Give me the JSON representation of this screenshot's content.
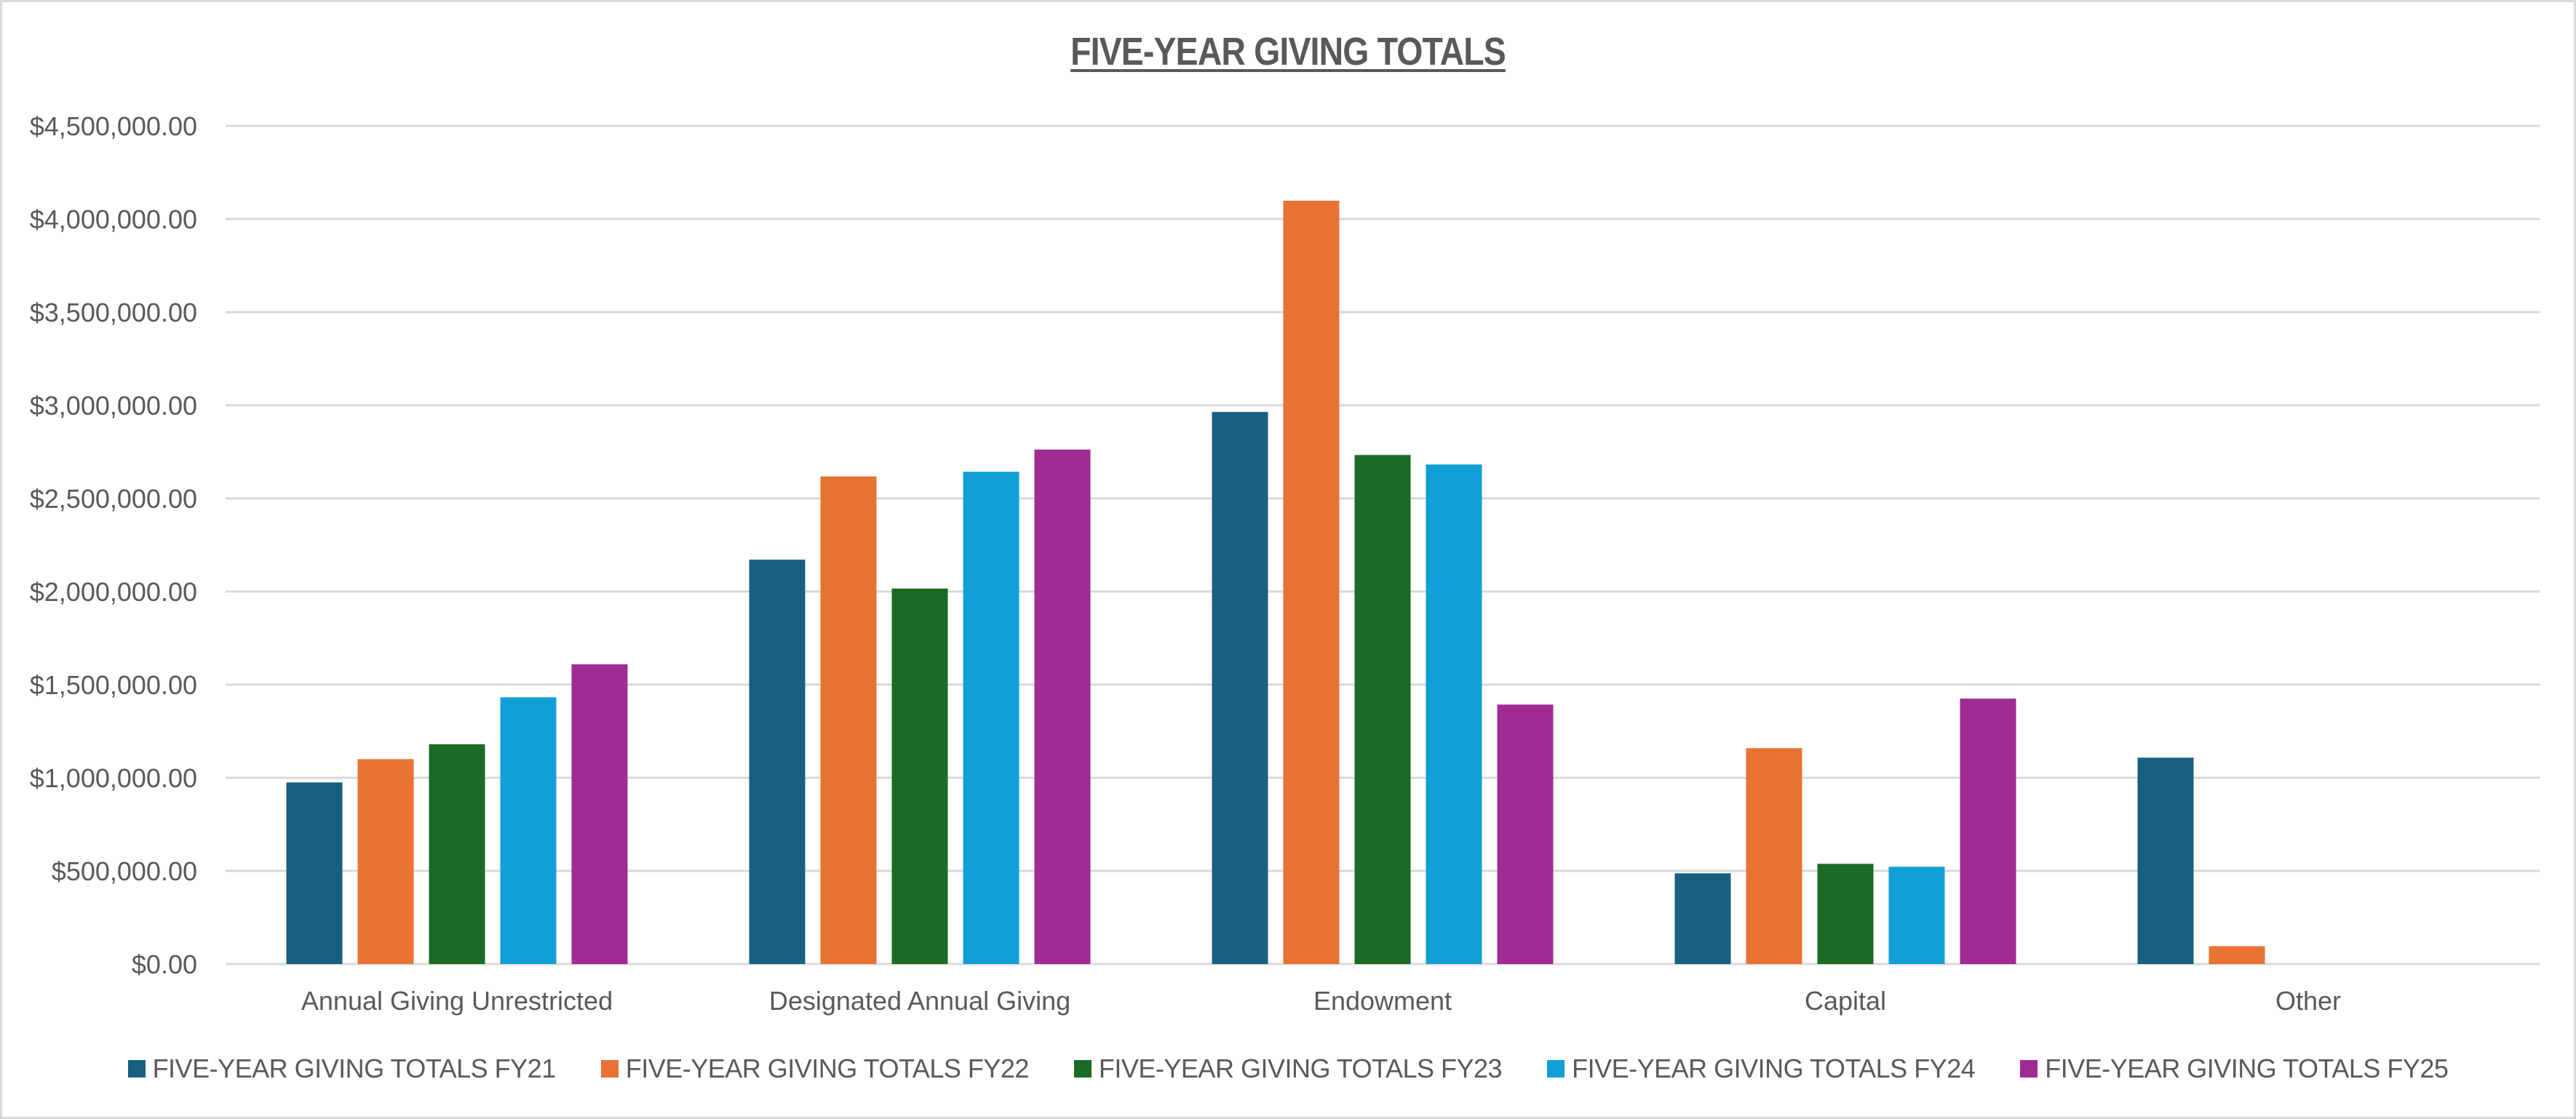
{
  "chart_data": {
    "type": "bar",
    "title": "FIVE-YEAR GIVING TOTALS",
    "xlabel": "",
    "ylabel": "",
    "ylim": [
      0,
      4500000
    ],
    "yticks": [
      0,
      500000,
      1000000,
      1500000,
      2000000,
      2500000,
      3000000,
      3500000,
      4000000,
      4500000
    ],
    "ytick_labels": [
      "$0.00",
      "$500,000.00",
      "$1,000,000.00",
      "$1,500,000.00",
      "$2,000,000.00",
      "$2,500,000.00",
      "$3,000,000.00",
      "$3,500,000.00",
      "$4,000,000.00",
      "$4,500,000.00"
    ],
    "grid": true,
    "legend_position": "bottom",
    "categories": [
      "Annual Giving Unrestricted",
      "Designated Annual Giving",
      "Endowment",
      "Capital",
      "Other"
    ],
    "series": [
      {
        "name": "FIVE-YEAR GIVING TOTALS FY21",
        "color": "#17607f",
        "values": [
          975000,
          2171000,
          2964000,
          487000,
          1108000
        ]
      },
      {
        "name": "FIVE-YEAR GIVING TOTALS FY22",
        "color": "#e97233",
        "values": [
          1100000,
          2618000,
          4098000,
          1159000,
          96000
        ]
      },
      {
        "name": "FIVE-YEAR GIVING TOTALS FY23",
        "color": "#1b6a25",
        "values": [
          1180000,
          2016000,
          2733000,
          538000,
          0
        ]
      },
      {
        "name": "FIVE-YEAR GIVING TOTALS FY24",
        "color": "#119fd6",
        "values": [
          1432000,
          2643000,
          2682000,
          522000,
          0
        ]
      },
      {
        "name": "FIVE-YEAR GIVING TOTALS FY25",
        "color": "#a02b93",
        "values": [
          1609000,
          2762000,
          1393000,
          1425000,
          0
        ]
      }
    ]
  },
  "colors": {
    "text": "#595959",
    "gridline": "#d9d9d9",
    "border": "#d9d9d9",
    "background": "#ffffff"
  }
}
